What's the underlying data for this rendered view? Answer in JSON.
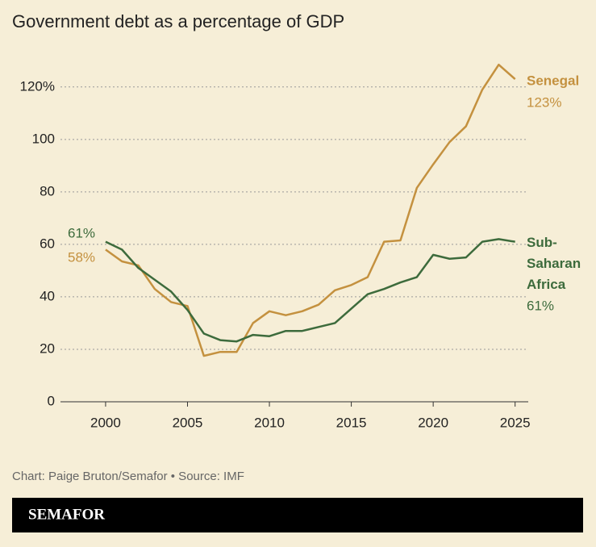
{
  "chart_data": {
    "type": "line",
    "title": "Government debt as a percentage of GDP",
    "x": [
      2000,
      2001,
      2002,
      2003,
      2004,
      2005,
      2006,
      2007,
      2008,
      2009,
      2010,
      2011,
      2012,
      2013,
      2014,
      2015,
      2016,
      2017,
      2018,
      2019,
      2020,
      2021,
      2022,
      2023,
      2024,
      2025
    ],
    "series": [
      {
        "name": "Senegal",
        "color": "#c4913f",
        "start_label": "58%",
        "end_label": "123%",
        "values": [
          58,
          53.5,
          52,
          43,
          38,
          36.5,
          17.5,
          19,
          19,
          30,
          34.5,
          33,
          34.5,
          37,
          42.5,
          44.5,
          47.5,
          61,
          61.5,
          81.5,
          90.5,
          99,
          105,
          119,
          128.5,
          123
        ]
      },
      {
        "name": "Sub-Saharan Africa",
        "color": "#3d6b3c",
        "start_label": "61%",
        "end_label": "61%",
        "values": [
          61,
          58,
          51,
          46.5,
          42,
          35,
          26,
          23.5,
          23,
          25.5,
          25,
          27,
          27,
          28.5,
          30,
          35.5,
          41,
          43,
          45.5,
          47.5,
          56,
          54.5,
          55,
          61,
          62,
          61
        ]
      }
    ],
    "xlim": [
      1997,
      2026
    ],
    "xticks": [
      2000,
      2005,
      2010,
      2015,
      2020,
      2025
    ],
    "ylim": [
      0,
      135
    ],
    "yticks": [
      0,
      20,
      40,
      60,
      80,
      100,
      {
        "value": 120,
        "label": "120%"
      }
    ],
    "grid": true,
    "source": "Chart: Paige Bruton/Semafor • Source: IMF",
    "brand": "SEMAFOR"
  }
}
